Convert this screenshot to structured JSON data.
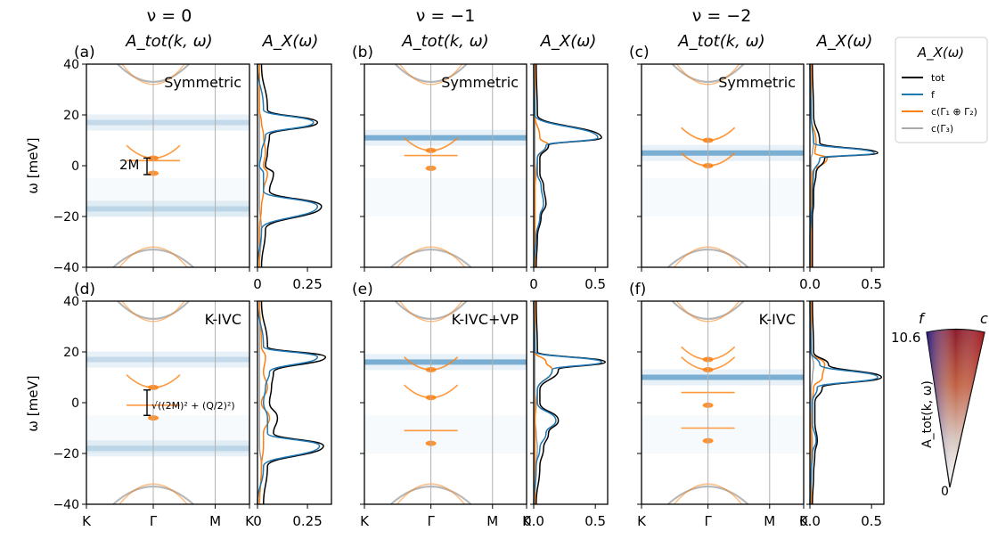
{
  "figure": {
    "columns": [
      {
        "nu_label": "ν = 0",
        "atot_label": "A_tot(k, ω)",
        "ax_label": "A_X(ω)"
      },
      {
        "nu_label": "ν = −1",
        "atot_label": "A_tot(k, ω)",
        "ax_label": "A_X(ω)"
      },
      {
        "nu_label": "ν = −2",
        "atot_label": "A_tot(k, ω)",
        "ax_label": "A_X(ω)"
      }
    ],
    "panel_letters": [
      "(a)",
      "(b)",
      "(c)",
      "(d)",
      "(e)",
      "(f)"
    ],
    "state_labels": [
      "Symmetric",
      "Symmetric",
      "Symmetric",
      "K-IVC",
      "K-IVC+VP",
      "K-IVC"
    ],
    "ylabel": "ω [meV]",
    "kpath_labels": [
      "K",
      "Γ",
      "M",
      "K"
    ],
    "annotation_gap_top": "2M",
    "annotation_gap_bottom": "√((2M)² + (Q/2)²)",
    "legend": {
      "title": "A_X(ω)",
      "entries": [
        {
          "label": "tot",
          "color": "#000000"
        },
        {
          "label": "f",
          "color": "#1f77b4"
        },
        {
          "label": "c(Γ₁ ⊕ Γ₂)",
          "color": "#ff7f0e"
        },
        {
          "label": "c(Γ₃)",
          "color": "#aaaaaa"
        }
      ]
    },
    "colorbar": {
      "label": "A_tot(k, ω)",
      "max_label": "10.6",
      "min_label": "0",
      "left_label": "f",
      "right_label": "c"
    },
    "colors": {
      "f": "#1f77b4",
      "c12": "#ff7f0e",
      "c3": "#a0a0a0",
      "tot": "#000000"
    }
  },
  "chart_data": [
    {
      "panel": "(a)",
      "type": "heatmap",
      "title": "Symmetric",
      "ylim": [
        -40,
        40
      ],
      "yticks": [
        -40,
        -20,
        0,
        20,
        40
      ],
      "xticks": [
        "K",
        "Γ",
        "M",
        "K"
      ],
      "flat_bands_meV": [
        17,
        -17
      ],
      "gamma_points_meV": [
        3,
        -3
      ]
    },
    {
      "panel": "(a)",
      "type": "line",
      "xlim": [
        0,
        0.37
      ],
      "xticks": [
        "0",
        "0.25"
      ],
      "ylim": [
        -40,
        40
      ],
      "series": [
        {
          "name": "tot",
          "x": [
            0.02,
            0.05,
            0.3,
            0.06,
            0.05,
            0.04,
            0.08,
            0.06,
            0.32,
            0.04,
            0.02
          ],
          "y": [
            40,
            22,
            17,
            12,
            5,
            0,
            -3,
            -10,
            -16,
            -25,
            -40
          ]
        },
        {
          "name": "f",
          "x": [
            0.0,
            0.03,
            0.28,
            0.04,
            0.02,
            0.01,
            0.03,
            0.03,
            0.3,
            0.02,
            0.0
          ],
          "y": [
            40,
            22,
            17,
            12,
            5,
            0,
            -3,
            -10,
            -16,
            -25,
            -40
          ]
        },
        {
          "name": "c(Γ₁ ⊕ Γ₂)",
          "x": [
            0.01,
            0.01,
            0.02,
            0.03,
            0.04,
            0.03,
            0.05,
            0.03,
            0.02,
            0.01,
            0.01
          ],
          "y": [
            40,
            22,
            17,
            12,
            5,
            0,
            -3,
            -10,
            -16,
            -25,
            -40
          ]
        },
        {
          "name": "c(Γ₃)",
          "x": [
            0.01,
            0.01,
            0.01,
            0.01,
            0.01,
            0.01,
            0.01,
            0.01,
            0.01,
            0.02,
            0.01
          ],
          "y": [
            40,
            22,
            17,
            12,
            5,
            0,
            -3,
            -10,
            -16,
            -25,
            -40
          ]
        }
      ]
    },
    {
      "panel": "(b)",
      "type": "heatmap",
      "title": "Symmetric",
      "ylim": [
        -40,
        40
      ],
      "yticks": [
        -40,
        -20,
        0,
        20,
        40
      ],
      "xticks": [
        "K",
        "Γ",
        "M",
        "K"
      ],
      "flat_bands_meV": [
        11
      ],
      "gamma_points_meV": [
        6,
        -1
      ]
    },
    {
      "panel": "(b)",
      "type": "line",
      "xlim": [
        0,
        0.6
      ],
      "xticks": [
        "0",
        "0.5"
      ],
      "ylim": [
        -40,
        40
      ],
      "series": [
        {
          "name": "tot",
          "x": [
            0.02,
            0.03,
            0.55,
            0.12,
            0.05,
            0.05,
            0.08,
            0.1,
            0.06,
            0.03,
            0.02
          ],
          "y": [
            40,
            20,
            11,
            8,
            3,
            -3,
            -8,
            -15,
            -20,
            -28,
            -40
          ]
        },
        {
          "name": "f",
          "x": [
            0.0,
            0.01,
            0.52,
            0.1,
            0.03,
            0.03,
            0.06,
            0.08,
            0.05,
            0.02,
            0.0
          ],
          "y": [
            40,
            20,
            11,
            8,
            3,
            -3,
            -8,
            -15,
            -20,
            -28,
            -40
          ]
        },
        {
          "name": "c(Γ₁ ⊕ Γ₂)",
          "x": [
            0.01,
            0.01,
            0.05,
            0.12,
            0.03,
            0.02,
            0.01,
            0.01,
            0.01,
            0.01,
            0.01
          ],
          "y": [
            40,
            20,
            11,
            8,
            3,
            -3,
            -8,
            -15,
            -20,
            -28,
            -40
          ]
        },
        {
          "name": "c(Γ₃)",
          "x": [
            0.01,
            0.01,
            0.01,
            0.01,
            0.01,
            0.01,
            0.01,
            0.01,
            0.01,
            0.01,
            0.01
          ],
          "y": [
            40,
            20,
            11,
            8,
            3,
            -3,
            -8,
            -15,
            -20,
            -28,
            -40
          ]
        }
      ]
    },
    {
      "panel": "(c)",
      "type": "heatmap",
      "title": "Symmetric",
      "ylim": [
        -40,
        40
      ],
      "yticks": [
        -40,
        -20,
        0,
        20,
        40
      ],
      "xticks": [
        "K",
        "Γ",
        "M",
        "K"
      ],
      "flat_bands_meV": [
        5
      ],
      "gamma_points_meV": [
        10,
        0
      ]
    },
    {
      "panel": "(c)",
      "type": "line",
      "xlim": [
        0,
        0.6
      ],
      "xticks": [
        "0.0",
        "0.5"
      ],
      "ylim": [
        -40,
        40
      ],
      "series": [
        {
          "name": "tot",
          "x": [
            0.02,
            0.03,
            0.08,
            0.55,
            0.12,
            0.05,
            0.03,
            0.03,
            0.02,
            0.02,
            0.02
          ],
          "y": [
            40,
            20,
            9,
            5,
            3,
            -3,
            -10,
            -15,
            -20,
            -28,
            -40
          ]
        },
        {
          "name": "f",
          "x": [
            0.0,
            0.01,
            0.03,
            0.52,
            0.08,
            0.03,
            0.02,
            0.02,
            0.01,
            0.0,
            0.0
          ],
          "y": [
            40,
            20,
            9,
            5,
            3,
            -3,
            -10,
            -15,
            -20,
            -28,
            -40
          ]
        },
        {
          "name": "c(Γ₁ ⊕ Γ₂)",
          "x": [
            0.01,
            0.01,
            0.05,
            0.04,
            0.14,
            0.02,
            0.01,
            0.01,
            0.01,
            0.01,
            0.01
          ],
          "y": [
            40,
            20,
            9,
            5,
            3,
            -3,
            -10,
            -15,
            -20,
            -28,
            -40
          ]
        },
        {
          "name": "c(Γ₃)",
          "x": [
            0.01,
            0.01,
            0.03,
            0.02,
            0.01,
            0.01,
            0.01,
            0.01,
            0.01,
            0.01,
            0.01
          ],
          "y": [
            40,
            20,
            9,
            5,
            3,
            -3,
            -10,
            -15,
            -20,
            -28,
            -40
          ]
        }
      ]
    },
    {
      "panel": "(d)",
      "type": "heatmap",
      "title": "K-IVC",
      "ylim": [
        -40,
        40
      ],
      "yticks": [
        -40,
        -20,
        0,
        20,
        40
      ],
      "xticks": [
        "K",
        "Γ",
        "M",
        "K"
      ],
      "flat_bands_meV": [
        17,
        -18
      ],
      "gamma_points_meV": [
        6,
        -6
      ]
    },
    {
      "panel": "(d)",
      "type": "line",
      "xlim": [
        0,
        0.37
      ],
      "xticks": [
        "0",
        "0.25"
      ],
      "ylim": [
        -40,
        40
      ],
      "series": [
        {
          "name": "tot",
          "x": [
            0.02,
            0.05,
            0.34,
            0.08,
            0.07,
            0.06,
            0.1,
            0.08,
            0.33,
            0.05,
            0.03
          ],
          "y": [
            40,
            22,
            18,
            12,
            6,
            0,
            -6,
            -12,
            -17,
            -25,
            -40
          ]
        },
        {
          "name": "f",
          "x": [
            0.0,
            0.03,
            0.3,
            0.06,
            0.04,
            0.03,
            0.05,
            0.05,
            0.31,
            0.03,
            0.0
          ],
          "y": [
            40,
            22,
            18,
            12,
            6,
            0,
            -6,
            -12,
            -17,
            -25,
            -40
          ]
        },
        {
          "name": "c(Γ₁ ⊕ Γ₂)",
          "x": [
            0.01,
            0.02,
            0.04,
            0.03,
            0.05,
            0.02,
            0.06,
            0.03,
            0.03,
            0.02,
            0.01
          ],
          "y": [
            40,
            22,
            18,
            12,
            6,
            0,
            -6,
            -12,
            -17,
            -25,
            -40
          ]
        },
        {
          "name": "c(Γ₃)",
          "x": [
            0.01,
            0.01,
            0.01,
            0.01,
            0.01,
            0.01,
            0.01,
            0.01,
            0.01,
            0.02,
            0.01
          ],
          "y": [
            40,
            22,
            18,
            12,
            6,
            0,
            -6,
            -12,
            -17,
            -25,
            -40
          ]
        }
      ]
    },
    {
      "panel": "(e)",
      "type": "heatmap",
      "title": "K-IVC+VP",
      "ylim": [
        -40,
        40
      ],
      "yticks": [
        -40,
        -20,
        0,
        20,
        40
      ],
      "xticks": [
        "K",
        "Γ",
        "M",
        "K"
      ],
      "flat_bands_meV": [
        16
      ],
      "gamma_points_meV": [
        13,
        2,
        -16
      ]
    },
    {
      "panel": "(e)",
      "type": "line",
      "xlim": [
        0,
        0.6
      ],
      "xticks": [
        "0.0",
        "0.5"
      ],
      "ylim": [
        -40,
        40
      ],
      "series": [
        {
          "name": "tot",
          "x": [
            0.02,
            0.03,
            0.58,
            0.2,
            0.05,
            0.05,
            0.2,
            0.12,
            0.08,
            0.05,
            0.02
          ],
          "y": [
            40,
            20,
            16,
            13,
            5,
            0,
            -7,
            -12,
            -18,
            -25,
            -40
          ]
        },
        {
          "name": "f",
          "x": [
            0.0,
            0.01,
            0.55,
            0.15,
            0.03,
            0.03,
            0.18,
            0.1,
            0.05,
            0.02,
            0.0
          ],
          "y": [
            40,
            20,
            16,
            13,
            5,
            0,
            -7,
            -12,
            -18,
            -25,
            -40
          ]
        },
        {
          "name": "c(Γ₁ ⊕ Γ₂)",
          "x": [
            0.01,
            0.01,
            0.1,
            0.15,
            0.03,
            0.02,
            0.01,
            0.01,
            0.01,
            0.01,
            0.01
          ],
          "y": [
            40,
            20,
            16,
            13,
            5,
            0,
            -7,
            -12,
            -18,
            -25,
            -40
          ]
        },
        {
          "name": "c(Γ₃)",
          "x": [
            0.01,
            0.01,
            0.01,
            0.01,
            0.01,
            0.01,
            0.01,
            0.02,
            0.03,
            0.02,
            0.01
          ],
          "y": [
            40,
            20,
            16,
            13,
            5,
            0,
            -7,
            -12,
            -18,
            -25,
            -40
          ]
        }
      ]
    },
    {
      "panel": "(f)",
      "type": "heatmap",
      "title": "K-IVC",
      "ylim": [
        -40,
        40
      ],
      "yticks": [
        -40,
        -20,
        0,
        20,
        40
      ],
      "xticks": [
        "K",
        "Γ",
        "M",
        "K"
      ],
      "flat_bands_meV": [
        10
      ],
      "gamma_points_meV": [
        17,
        13,
        -1,
        -15
      ]
    },
    {
      "panel": "(f)",
      "type": "line",
      "xlim": [
        0,
        0.6
      ],
      "xticks": [
        "0.0",
        "0.5"
      ],
      "ylim": [
        -40,
        40
      ],
      "series": [
        {
          "name": "tot",
          "x": [
            0.02,
            0.03,
            0.15,
            0.58,
            0.1,
            0.04,
            0.04,
            0.06,
            0.04,
            0.03,
            0.02
          ],
          "y": [
            40,
            20,
            15,
            10,
            6,
            0,
            -8,
            -15,
            -20,
            -28,
            -40
          ]
        },
        {
          "name": "f",
          "x": [
            0.0,
            0.01,
            0.08,
            0.55,
            0.06,
            0.02,
            0.02,
            0.05,
            0.02,
            0.01,
            0.0
          ],
          "y": [
            40,
            20,
            15,
            10,
            6,
            0,
            -8,
            -15,
            -20,
            -28,
            -40
          ]
        },
        {
          "name": "c(Γ₁ ⊕ Γ₂)",
          "x": [
            0.01,
            0.01,
            0.12,
            0.1,
            0.03,
            0.02,
            0.01,
            0.01,
            0.01,
            0.01,
            0.01
          ],
          "y": [
            40,
            20,
            15,
            10,
            6,
            0,
            -8,
            -15,
            -20,
            -28,
            -40
          ]
        },
        {
          "name": "c(Γ₃)",
          "x": [
            0.01,
            0.01,
            0.03,
            0.02,
            0.01,
            0.01,
            0.01,
            0.02,
            0.02,
            0.01,
            0.01
          ],
          "y": [
            40,
            20,
            15,
            10,
            6,
            0,
            -8,
            -15,
            -20,
            -28,
            -40
          ]
        }
      ]
    }
  ]
}
